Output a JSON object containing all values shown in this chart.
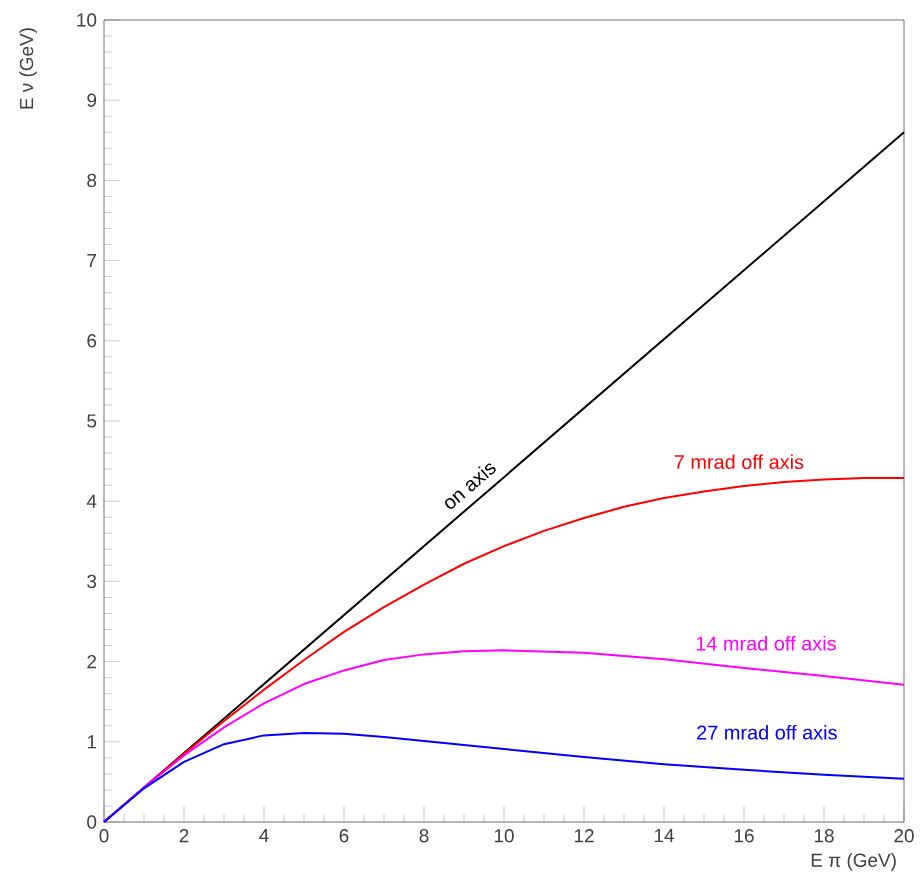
{
  "chart_data": {
    "type": "line",
    "xlabel": "E π (GeV)",
    "ylabel": "E ν (GeV)",
    "xlim": [
      0,
      20
    ],
    "ylim": [
      0,
      10
    ],
    "xticks": [
      0,
      2,
      4,
      6,
      8,
      10,
      12,
      14,
      16,
      18,
      20
    ],
    "yticks": [
      0,
      1,
      2,
      3,
      4,
      5,
      6,
      7,
      8,
      9,
      10
    ],
    "grid": false,
    "marker": "none",
    "line_style": "solid",
    "series": [
      {
        "name": "on axis",
        "color": "#000000",
        "x": [
          0,
          10,
          20
        ],
        "values": [
          0,
          4.3,
          8.6
        ]
      },
      {
        "name": "7 mrad off axis",
        "color": "#ff0000",
        "x": [
          0,
          1,
          2,
          3,
          4,
          5,
          6,
          7,
          8,
          9,
          10,
          11,
          12,
          13,
          14,
          15,
          16,
          17,
          18,
          19,
          20
        ],
        "values": [
          0,
          0.43,
          0.85,
          1.26,
          1.65,
          2.02,
          2.37,
          2.68,
          2.96,
          3.22,
          3.44,
          3.63,
          3.79,
          3.93,
          4.04,
          4.12,
          4.19,
          4.24,
          4.27,
          4.29,
          4.29
        ]
      },
      {
        "name": "14 mrad off axis",
        "color": "#ff00ff",
        "x": [
          0,
          1,
          2,
          3,
          4,
          5,
          6,
          7,
          8,
          9,
          10,
          12,
          14,
          16,
          18,
          20
        ],
        "values": [
          0,
          0.43,
          0.83,
          1.18,
          1.48,
          1.72,
          1.89,
          2.02,
          2.09,
          2.13,
          2.14,
          2.11,
          2.03,
          1.92,
          1.82,
          1.71
        ]
      },
      {
        "name": "27 mrad off axis",
        "color": "#0000ff",
        "x": [
          0,
          1,
          2,
          3,
          4,
          5,
          6,
          7,
          8,
          10,
          12,
          14,
          16,
          18,
          20
        ],
        "values": [
          0,
          0.42,
          0.75,
          0.97,
          1.08,
          1.11,
          1.1,
          1.06,
          1.01,
          0.91,
          0.81,
          0.72,
          0.65,
          0.59,
          0.54
        ]
      }
    ]
  }
}
